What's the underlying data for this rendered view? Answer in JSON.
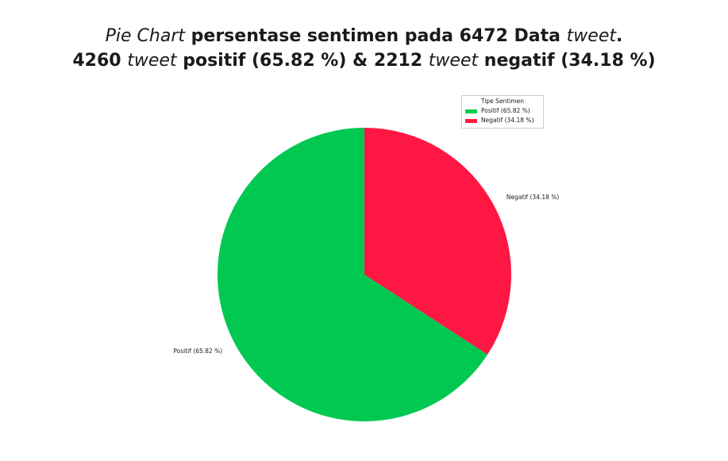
{
  "title": {
    "line1_part1": "Pie Chart",
    "line1_part2": " persentase sentimen pada 6472 Data ",
    "line1_part3": "tweet",
    "line1_part4": ".",
    "line2_part1": "4260 ",
    "line2_part2": "tweet",
    "line2_part3": " positif (65.82 %) & 2212 ",
    "line2_part4": "tweet",
    "line2_part5": " negatif (34.18 %)"
  },
  "legend": {
    "title": "Tipe Sentimen",
    "items": [
      {
        "label": "Positif (65.82 %)",
        "color": "#00c851"
      },
      {
        "label": "Negatif (34.18 %)",
        "color": "#ff1744"
      }
    ]
  },
  "chart_data": {
    "type": "pie",
    "title": "Pie Chart persentase sentimen pada 6472 Data tweet. 4260 tweet positif (65.82 %) & 2212 tweet negatif (34.18 %)",
    "categories": [
      "Positif",
      "Negatif"
    ],
    "values": [
      4260,
      2212
    ],
    "percentages": [
      65.82,
      34.18
    ],
    "slice_labels": [
      "Positif (65.82 %)",
      "Negatif (34.18 %)"
    ],
    "colors": [
      "#00c851",
      "#ff1744"
    ],
    "start": "top",
    "direction": "counterclockwise",
    "legend_title": "Tipe Sentimen",
    "legend_position": "top-right"
  }
}
